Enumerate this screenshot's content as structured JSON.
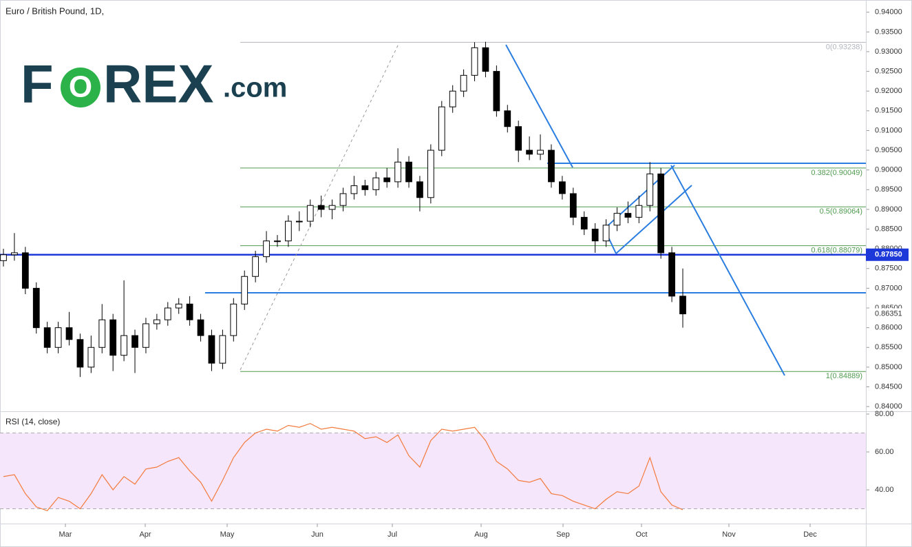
{
  "chart_data": [
    {
      "type": "candlestick",
      "title": "Euro / British Pound, 1D,",
      "logo": [
        "F",
        "O",
        "REX",
        ".com"
      ],
      "open": [
        0.877,
        0.8785,
        0.879,
        0.87,
        0.86,
        0.855,
        0.86,
        0.857,
        0.85,
        0.855,
        0.862,
        0.853,
        0.858,
        0.855,
        0.861,
        0.862,
        0.865,
        0.866,
        0.862,
        0.858,
        0.851,
        0.858,
        0.866,
        0.873,
        0.878,
        0.882,
        0.882,
        0.887,
        0.887,
        0.891,
        0.89,
        0.891,
        0.894,
        0.896,
        0.895,
        0.898,
        0.897,
        0.902,
        0.897,
        0.893,
        0.905,
        0.916,
        0.92,
        0.924,
        0.931,
        0.925,
        0.915,
        0.911,
        0.905,
        0.904,
        0.905,
        0.897,
        0.894,
        0.888,
        0.885,
        0.882,
        0.886,
        0.889,
        0.888,
        0.891,
        0.899,
        0.879,
        0.868
      ],
      "high": [
        0.88,
        0.884,
        0.8805,
        0.8715,
        0.8615,
        0.8615,
        0.864,
        0.8585,
        0.858,
        0.866,
        0.8635,
        0.872,
        0.8595,
        0.8625,
        0.8635,
        0.8665,
        0.8675,
        0.868,
        0.8635,
        0.8595,
        0.8595,
        0.8675,
        0.8745,
        0.8795,
        0.8845,
        0.8835,
        0.8885,
        0.8895,
        0.8925,
        0.8935,
        0.8925,
        0.8955,
        0.8985,
        0.8975,
        0.8995,
        0.9005,
        0.9055,
        0.9035,
        0.8985,
        0.9065,
        0.9175,
        0.9215,
        0.9255,
        0.9324,
        0.9325,
        0.9265,
        0.9165,
        0.9125,
        0.9085,
        0.909,
        0.9065,
        0.8985,
        0.8955,
        0.8895,
        0.8865,
        0.8875,
        0.8905,
        0.892,
        0.8935,
        0.902,
        0.9005,
        0.8805,
        0.875
      ],
      "low": [
        0.8755,
        0.877,
        0.8685,
        0.8585,
        0.8535,
        0.8535,
        0.8555,
        0.8475,
        0.8485,
        0.8535,
        0.849,
        0.8515,
        0.8485,
        0.8535,
        0.8595,
        0.8605,
        0.8635,
        0.8605,
        0.8565,
        0.849,
        0.8495,
        0.8565,
        0.8645,
        0.8715,
        0.8765,
        0.8805,
        0.8805,
        0.8845,
        0.8855,
        0.888,
        0.8875,
        0.8895,
        0.8925,
        0.8935,
        0.8935,
        0.8955,
        0.8955,
        0.8955,
        0.8895,
        0.8915,
        0.9035,
        0.9145,
        0.9185,
        0.9225,
        0.9235,
        0.9135,
        0.9095,
        0.902,
        0.9025,
        0.9025,
        0.8955,
        0.8925,
        0.886,
        0.8835,
        0.879,
        0.8805,
        0.8845,
        0.8865,
        0.8865,
        0.8895,
        0.8775,
        0.8665,
        0.86
      ],
      "close": [
        0.8785,
        0.879,
        0.87,
        0.86,
        0.855,
        0.86,
        0.857,
        0.85,
        0.855,
        0.862,
        0.853,
        0.858,
        0.855,
        0.861,
        0.862,
        0.865,
        0.866,
        0.862,
        0.858,
        0.851,
        0.858,
        0.866,
        0.873,
        0.878,
        0.882,
        0.882,
        0.887,
        0.887,
        0.891,
        0.89,
        0.891,
        0.894,
        0.896,
        0.895,
        0.898,
        0.897,
        0.902,
        0.897,
        0.893,
        0.905,
        0.916,
        0.92,
        0.924,
        0.931,
        0.925,
        0.915,
        0.911,
        0.905,
        0.904,
        0.905,
        0.897,
        0.894,
        0.888,
        0.885,
        0.882,
        0.886,
        0.889,
        0.888,
        0.891,
        0.899,
        0.879,
        0.868,
        0.8635
      ],
      "up_color": "#ffffff",
      "down_color": "#000000",
      "ylim": [
        0.8388,
        0.9431
      ],
      "yticks": [
        {
          "value": 0.84,
          "label": "0.84000"
        },
        {
          "value": 0.845,
          "label": "0.84500"
        },
        {
          "value": 0.85,
          "label": "0.85000"
        },
        {
          "value": 0.855,
          "label": "0.85500"
        },
        {
          "value": 0.86,
          "label": "0.86000"
        },
        {
          "value": 0.865,
          "label": "0.86500"
        },
        {
          "value": 0.87,
          "label": "0.87000"
        },
        {
          "value": 0.875,
          "label": "0.87500"
        },
        {
          "value": 0.88,
          "label": "0.88000"
        },
        {
          "value": 0.885,
          "label": "0.88500"
        },
        {
          "value": 0.89,
          "label": "0.89000"
        },
        {
          "value": 0.895,
          "label": "0.89500"
        },
        {
          "value": 0.9,
          "label": "0.90000"
        },
        {
          "value": 0.905,
          "label": "0.90500"
        },
        {
          "value": 0.91,
          "label": "0.91000"
        },
        {
          "value": 0.915,
          "label": "0.91500"
        },
        {
          "value": 0.92,
          "label": "0.92000"
        },
        {
          "value": 0.925,
          "label": "0.92500"
        },
        {
          "value": 0.93,
          "label": "0.93000"
        },
        {
          "value": 0.935,
          "label": "0.93500"
        },
        {
          "value": 0.94,
          "label": "0.94000"
        }
      ],
      "fib_levels": [
        {
          "value": 0.93238,
          "label": "0(0.93238)",
          "color": "#b2b5be"
        },
        {
          "value": 0.90049,
          "label": "0.382(0.90049)",
          "color": "#4f9a4f"
        },
        {
          "value": 0.89064,
          "label": "0.5(0.89064)",
          "color": "#4f9a4f"
        },
        {
          "value": 0.88079,
          "label": "0.618(0.88079)",
          "color": "#4f9a4f"
        },
        {
          "value": 0.84889,
          "label": "1(0.84889)",
          "color": "#4f9a4f"
        }
      ],
      "hline": {
        "value": 0.8785,
        "label": "0.87850",
        "color": "#1c38d8"
      },
      "last_price": {
        "value": 0.86351,
        "label": "0.86351"
      }
    },
    {
      "type": "line",
      "title": "RSI (14, close)",
      "values": [
        47,
        48,
        38,
        31,
        29,
        36,
        34,
        30,
        38,
        48,
        40,
        47,
        43,
        51,
        52,
        55,
        57,
        50,
        44,
        34,
        45,
        57,
        65,
        70,
        72,
        71,
        74,
        73,
        75,
        72,
        73,
        72,
        71,
        67,
        68,
        65,
        69,
        58,
        52,
        66,
        72,
        71,
        72,
        73,
        66,
        55,
        51,
        45,
        44,
        46,
        38,
        37,
        34,
        32,
        30,
        35,
        39,
        38,
        42,
        57,
        39,
        32,
        29.5
      ],
      "color": "#f47a3c",
      "ylim": [
        22.2,
        81.45
      ],
      "yticks": [
        {
          "value": 40,
          "label": "40.00"
        },
        {
          "value": 60,
          "label": "60.00"
        },
        {
          "value": 80,
          "label": "80.00"
        }
      ],
      "band": [
        30,
        70
      ],
      "band_color": "#f5e6fb",
      "x_labels": [
        "Mar",
        "Apr",
        "May",
        "Jun",
        "Jul",
        "Aug",
        "Sep",
        "Oct",
        "Nov",
        "Dec"
      ]
    }
  ]
}
